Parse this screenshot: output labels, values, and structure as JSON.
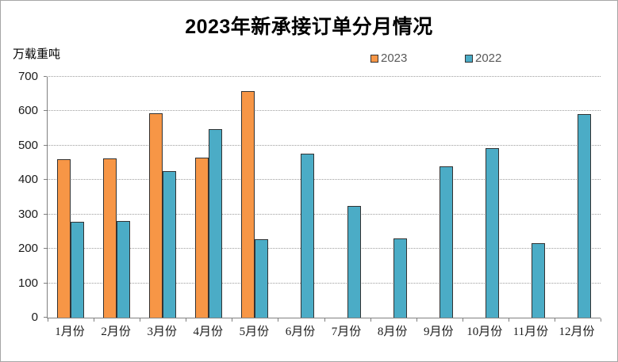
{
  "window": {
    "background": "#ffffff",
    "frame_border_color": "#a6a6a6"
  },
  "chart_data": {
    "type": "bar",
    "title": "2023年新承接订单分月情况",
    "ylabel": "万载重吨",
    "xlabel": "",
    "categories": [
      "1月份",
      "2月份",
      "3月份",
      "4月份",
      "5月份",
      "6月份",
      "7月份",
      "8月份",
      "9月份",
      "10月份",
      "11月份",
      "12月份"
    ],
    "series": [
      {
        "name": "2023",
        "color": "#F79646",
        "values": [
          460,
          463,
          593,
          466,
          659,
          null,
          null,
          null,
          null,
          null,
          null,
          null
        ]
      },
      {
        "name": "2022",
        "color": "#4BACC6",
        "values": [
          278,
          281,
          427,
          547,
          228,
          477,
          325,
          230,
          440,
          492,
          217,
          591
        ]
      }
    ],
    "ylim": [
      0,
      700
    ],
    "yticks": [
      0,
      100,
      200,
      300,
      400,
      500,
      600,
      700
    ],
    "grid": "horizontal-dotted",
    "gridline_color": "#9e9e9e",
    "axis_color": "#808080",
    "bar_border_color": "#333333",
    "legend_position": "top-center"
  }
}
